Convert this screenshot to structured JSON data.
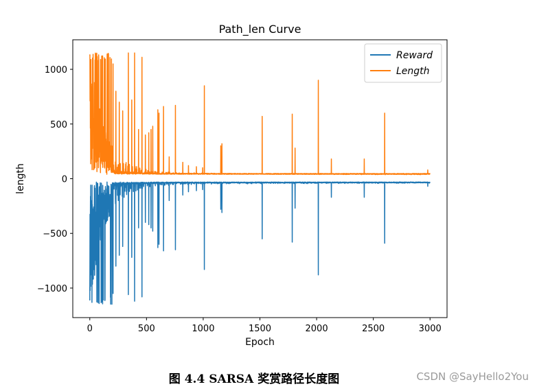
{
  "chart_data": {
    "type": "line",
    "title": "Path_len Curve",
    "xlabel": "Epoch",
    "ylabel": "length",
    "xlim": [
      -150,
      3150
    ],
    "ylim": [
      -1270,
      1270
    ],
    "xticks": [
      0,
      500,
      1000,
      1500,
      2000,
      2500,
      3000
    ],
    "yticks": [
      -1000,
      -500,
      0,
      500,
      1000
    ],
    "xtick_labels": [
      "0",
      "500",
      "1000",
      "1500",
      "2000",
      "2500",
      "3000"
    ],
    "ytick_labels": [
      "−1000",
      "−500",
      "0",
      "500",
      "1000"
    ],
    "legend_position": "top-right",
    "series": [
      {
        "name": "Reward",
        "color": "#1f77b4",
        "baseline": -30,
        "x": [
          0,
          10,
          20,
          40,
          60,
          80,
          100,
          130,
          160,
          200,
          250,
          300,
          350,
          400,
          500,
          600,
          700,
          800,
          1000,
          1200,
          1500,
          2000,
          2500,
          3000
        ],
        "y": [
          -1150,
          -1100,
          -1020,
          -900,
          -800,
          -700,
          -600,
          -450,
          -380,
          -300,
          -230,
          -180,
          -140,
          -110,
          -80,
          -65,
          -55,
          -50,
          -45,
          -42,
          -40,
          -38,
          -36,
          -35
        ],
        "spikes": [
          {
            "x": 205,
            "y": -1050
          },
          {
            "x": 230,
            "y": -800
          },
          {
            "x": 260,
            "y": -700
          },
          {
            "x": 290,
            "y": -620
          },
          {
            "x": 340,
            "y": -1060
          },
          {
            "x": 370,
            "y": -720
          },
          {
            "x": 395,
            "y": -1120
          },
          {
            "x": 430,
            "y": -450
          },
          {
            "x": 460,
            "y": -1080
          },
          {
            "x": 490,
            "y": -400
          },
          {
            "x": 520,
            "y": -420
          },
          {
            "x": 540,
            "y": -450
          },
          {
            "x": 555,
            "y": -480
          },
          {
            "x": 600,
            "y": -630
          },
          {
            "x": 610,
            "y": -600
          },
          {
            "x": 650,
            "y": -660
          },
          {
            "x": 700,
            "y": -200
          },
          {
            "x": 755,
            "y": -650
          },
          {
            "x": 820,
            "y": -150
          },
          {
            "x": 870,
            "y": -120
          },
          {
            "x": 940,
            "y": -110
          },
          {
            "x": 995,
            "y": -100
          },
          {
            "x": 1010,
            "y": -830
          },
          {
            "x": 1155,
            "y": -280
          },
          {
            "x": 1165,
            "y": -310
          },
          {
            "x": 1520,
            "y": -550
          },
          {
            "x": 1785,
            "y": -580
          },
          {
            "x": 1810,
            "y": -270
          },
          {
            "x": 2015,
            "y": -880
          },
          {
            "x": 2130,
            "y": -170
          },
          {
            "x": 2420,
            "y": -170
          },
          {
            "x": 2600,
            "y": -590
          },
          {
            "x": 2980,
            "y": -70
          }
        ]
      },
      {
        "name": "Length",
        "color": "#ff7f0e",
        "baseline": 40,
        "x": [
          0,
          10,
          20,
          40,
          60,
          80,
          100,
          130,
          160,
          200,
          250,
          300,
          350,
          400,
          500,
          600,
          700,
          800,
          1000,
          1200,
          1500,
          2000,
          2500,
          3000
        ],
        "y": [
          1160,
          1100,
          1020,
          900,
          800,
          700,
          600,
          450,
          380,
          300,
          230,
          180,
          140,
          110,
          80,
          65,
          55,
          50,
          45,
          42,
          40,
          38,
          36,
          35
        ],
        "spikes": [
          {
            "x": 205,
            "y": 1050
          },
          {
            "x": 230,
            "y": 800
          },
          {
            "x": 260,
            "y": 700
          },
          {
            "x": 290,
            "y": 620
          },
          {
            "x": 340,
            "y": 1150
          },
          {
            "x": 370,
            "y": 720
          },
          {
            "x": 395,
            "y": 1150
          },
          {
            "x": 430,
            "y": 450
          },
          {
            "x": 460,
            "y": 1110
          },
          {
            "x": 490,
            "y": 400
          },
          {
            "x": 520,
            "y": 420
          },
          {
            "x": 540,
            "y": 450
          },
          {
            "x": 555,
            "y": 480
          },
          {
            "x": 600,
            "y": 630
          },
          {
            "x": 610,
            "y": 600
          },
          {
            "x": 650,
            "y": 660
          },
          {
            "x": 700,
            "y": 200
          },
          {
            "x": 755,
            "y": 670
          },
          {
            "x": 820,
            "y": 150
          },
          {
            "x": 870,
            "y": 120
          },
          {
            "x": 940,
            "y": 110
          },
          {
            "x": 995,
            "y": 100
          },
          {
            "x": 1010,
            "y": 850
          },
          {
            "x": 1155,
            "y": 300
          },
          {
            "x": 1165,
            "y": 320
          },
          {
            "x": 1520,
            "y": 570
          },
          {
            "x": 1785,
            "y": 590
          },
          {
            "x": 1810,
            "y": 280
          },
          {
            "x": 2015,
            "y": 900
          },
          {
            "x": 2130,
            "y": 180
          },
          {
            "x": 2420,
            "y": 180
          },
          {
            "x": 2600,
            "y": 600
          },
          {
            "x": 2980,
            "y": 80
          }
        ]
      }
    ]
  },
  "caption": "图 4.4 SARSA 奖赏路径长度图",
  "watermark": "CSDN @SayHello2You"
}
